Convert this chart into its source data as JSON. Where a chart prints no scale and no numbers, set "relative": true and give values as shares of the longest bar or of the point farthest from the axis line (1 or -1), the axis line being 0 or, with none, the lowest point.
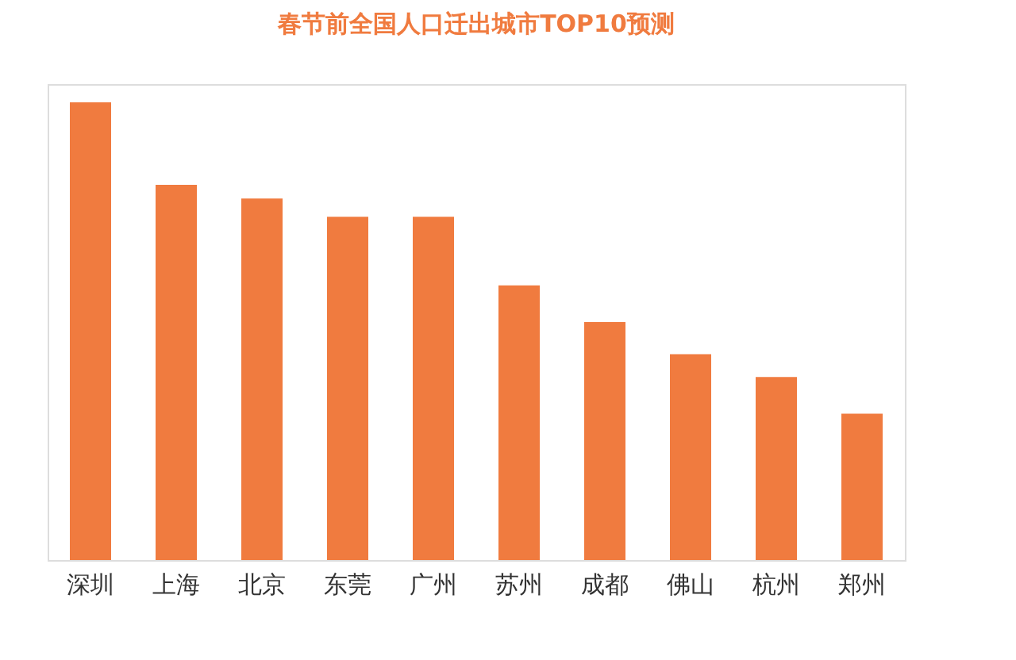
{
  "chart_data": {
    "type": "bar",
    "title": "春节前全国人口迁出城市TOP10预测",
    "relative": true,
    "categories": [
      "深圳",
      "上海",
      "北京",
      "东莞",
      "广州",
      "苏州",
      "成都",
      "佛山",
      "杭州",
      "郑州"
    ],
    "values": [
      1,
      0.82,
      0.79,
      0.75,
      0.75,
      0.6,
      0.52,
      0.45,
      0.4,
      0.32
    ],
    "color": "#f07b3f",
    "grid": false
  }
}
